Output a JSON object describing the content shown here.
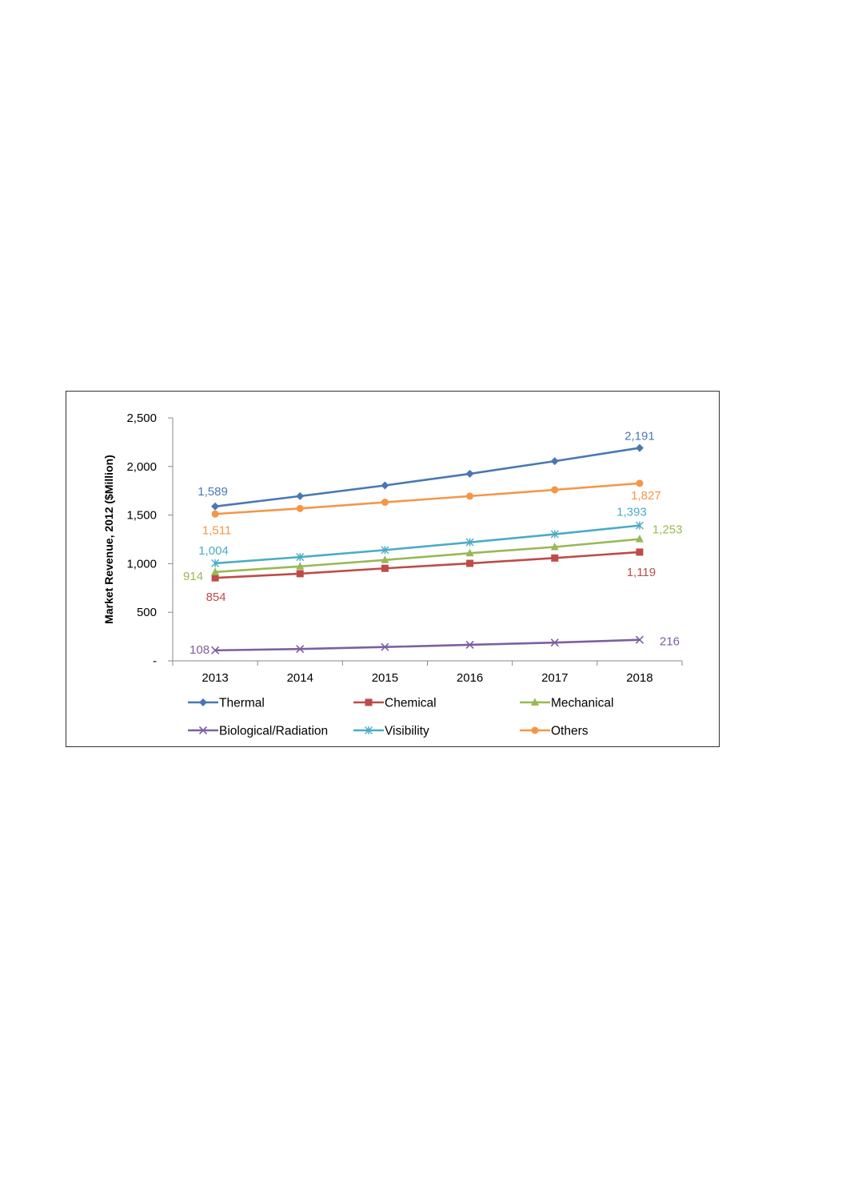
{
  "chart_data": {
    "type": "line",
    "title": "",
    "xlabel": "",
    "ylabel": "Market Revenue,  2012 ($Million)",
    "categories": [
      "2013",
      "2014",
      "2015",
      "2016",
      "2017",
      "2018"
    ],
    "ylim": [
      0,
      2500
    ],
    "yticks": [
      0,
      500,
      1000,
      1500,
      2000,
      2500
    ],
    "ytick_labels": [
      "-",
      "500",
      "1,000",
      "1,500",
      "2,000",
      "2,500"
    ],
    "grid": false,
    "legend_position": "bottom",
    "series": [
      {
        "name": "Thermal",
        "color": "#4a77b4",
        "marker": "diamond",
        "values": [
          1589,
          1695,
          1805,
          1925,
          2055,
          2191
        ]
      },
      {
        "name": "Chemical",
        "color": "#be4b48",
        "marker": "square",
        "values": [
          854,
          897,
          952,
          1003,
          1058,
          1119
        ]
      },
      {
        "name": "Mechanical",
        "color": "#98b954",
        "marker": "triangle",
        "values": [
          914,
          972,
          1038,
          1108,
          1172,
          1253
        ]
      },
      {
        "name": "Biological/Radiation",
        "color": "#7d5fa0",
        "marker": "x",
        "values": [
          108,
          122,
          142,
          165,
          188,
          216
        ]
      },
      {
        "name": "Visibility",
        "color": "#4aacc5",
        "marker": "asterisk",
        "values": [
          1004,
          1068,
          1140,
          1220,
          1303,
          1393
        ]
      },
      {
        "name": "Others",
        "color": "#f59647",
        "marker": "circle",
        "values": [
          1511,
          1568,
          1632,
          1695,
          1760,
          1827
        ]
      }
    ],
    "data_labels": [
      {
        "series": "Thermal",
        "index": 0,
        "text": "1,589",
        "color": "#4a77b4"
      },
      {
        "series": "Thermal",
        "index": 5,
        "text": "2,191",
        "color": "#4a77b4"
      },
      {
        "series": "Others",
        "index": 0,
        "text": "1,511",
        "color": "#f59647"
      },
      {
        "series": "Others",
        "index": 5,
        "text": "1,827",
        "color": "#f59647"
      },
      {
        "series": "Visibility",
        "index": 0,
        "text": "1,004",
        "color": "#4aacc5"
      },
      {
        "series": "Visibility",
        "index": 5,
        "text": "1,393",
        "color": "#4aacc5"
      },
      {
        "series": "Mechanical",
        "index": 0,
        "text": "914",
        "color": "#98b954"
      },
      {
        "series": "Mechanical",
        "index": 5,
        "text": "1,253",
        "color": "#98b954"
      },
      {
        "series": "Chemical",
        "index": 0,
        "text": "854",
        "color": "#be4b48"
      },
      {
        "series": "Chemical",
        "index": 5,
        "text": "1,119",
        "color": "#be4b48"
      },
      {
        "series": "Biological/Radiation",
        "index": 0,
        "text": "108",
        "color": "#7d5fa0"
      },
      {
        "series": "Biological/Radiation",
        "index": 5,
        "text": "216",
        "color": "#7d5fa0"
      }
    ],
    "legend_order": [
      "Thermal",
      "Chemical",
      "Mechanical",
      "Biological/Radiation",
      "Visibility",
      "Others"
    ]
  }
}
